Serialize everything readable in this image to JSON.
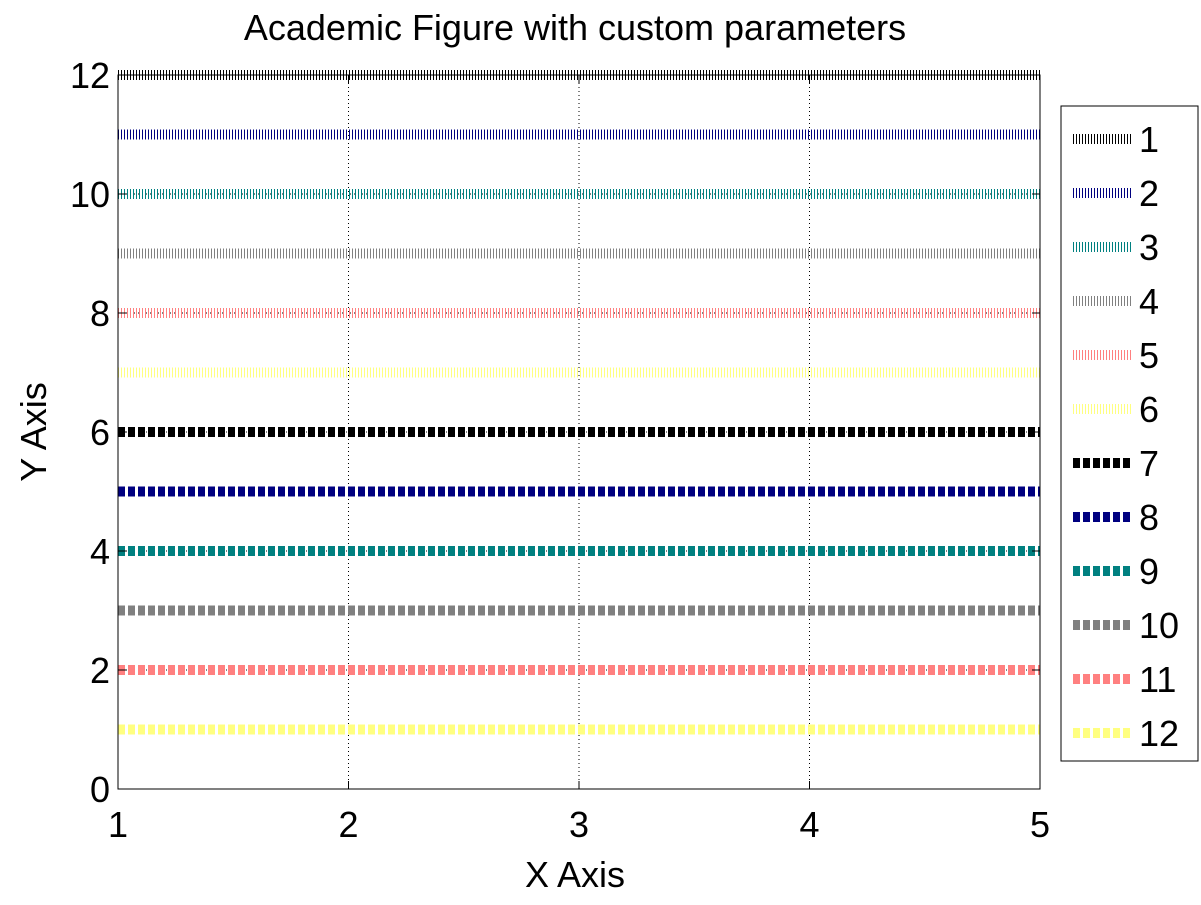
{
  "chart_data": {
    "type": "line",
    "title": "Academic Figure with custom parameters",
    "xlabel": "X Axis",
    "ylabel": "Y Axis",
    "xlim": [
      1,
      5
    ],
    "ylim": [
      0,
      12
    ],
    "x_ticks": [
      1,
      2,
      3,
      4,
      5
    ],
    "y_ticks": [
      0,
      2,
      4,
      6,
      8,
      10,
      12
    ],
    "grid": true,
    "legend_position": "outside right",
    "x": [
      1,
      2,
      3,
      4,
      5
    ],
    "series": [
      {
        "name": "1",
        "values": [
          12,
          12,
          12,
          12,
          12
        ],
        "color": "#000000",
        "style": "dotted"
      },
      {
        "name": "2",
        "values": [
          11,
          11,
          11,
          11,
          11
        ],
        "color": "#000080",
        "style": "dotted"
      },
      {
        "name": "3",
        "values": [
          10,
          10,
          10,
          10,
          10
        ],
        "color": "#008080",
        "style": "dotted"
      },
      {
        "name": "4",
        "values": [
          9,
          9,
          9,
          9,
          9
        ],
        "color": "#808080",
        "style": "dotted"
      },
      {
        "name": "5",
        "values": [
          8,
          8,
          8,
          8,
          8
        ],
        "color": "#ff8080",
        "style": "dotted"
      },
      {
        "name": "6",
        "values": [
          7,
          7,
          7,
          7,
          7
        ],
        "color": "#ffff80",
        "style": "dotted"
      },
      {
        "name": "7",
        "values": [
          6,
          6,
          6,
          6,
          6
        ],
        "color": "#000000",
        "style": "dashed"
      },
      {
        "name": "8",
        "values": [
          5,
          5,
          5,
          5,
          5
        ],
        "color": "#000080",
        "style": "dashed"
      },
      {
        "name": "9",
        "values": [
          4,
          4,
          4,
          4,
          4
        ],
        "color": "#008080",
        "style": "dashed"
      },
      {
        "name": "10",
        "values": [
          3,
          3,
          3,
          3,
          3
        ],
        "color": "#808080",
        "style": "dashed"
      },
      {
        "name": "11",
        "values": [
          2,
          2,
          2,
          2,
          2
        ],
        "color": "#ff8080",
        "style": "dashed"
      },
      {
        "name": "12",
        "values": [
          1,
          1,
          1,
          1,
          1
        ],
        "color": "#ffff80",
        "style": "dashed"
      }
    ]
  }
}
